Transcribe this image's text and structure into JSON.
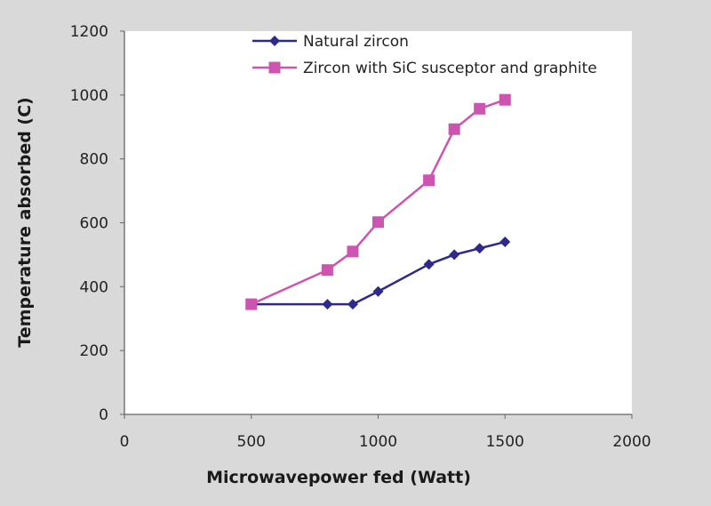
{
  "chart_data": {
    "type": "line",
    "title": "",
    "xlabel": "Microwavepower fed (Watt)",
    "ylabel": "Temperature absorbed (C)",
    "xlim": [
      0,
      2000
    ],
    "ylim": [
      0,
      1200
    ],
    "xticks": [
      0,
      500,
      1000,
      1500,
      2000
    ],
    "yticks": [
      0,
      200,
      400,
      600,
      800,
      1000,
      1200
    ],
    "grid": false,
    "legend_position": "top",
    "series": [
      {
        "name": "Natural zircon",
        "color": "#2e2a8a",
        "marker": "diamond",
        "x": [
          500,
          800,
          900,
          1000,
          1200,
          1300,
          1400,
          1500
        ],
        "y": [
          345,
          345,
          345,
          385,
          470,
          500,
          520,
          540
        ]
      },
      {
        "name": "Zircon with SiC susceptor and graphite",
        "color": "#cc55b0",
        "marker": "square",
        "x": [
          500,
          800,
          900,
          1000,
          1200,
          1300,
          1400,
          1500
        ],
        "y": [
          345,
          452,
          510,
          602,
          733,
          893,
          957,
          985
        ]
      }
    ]
  }
}
